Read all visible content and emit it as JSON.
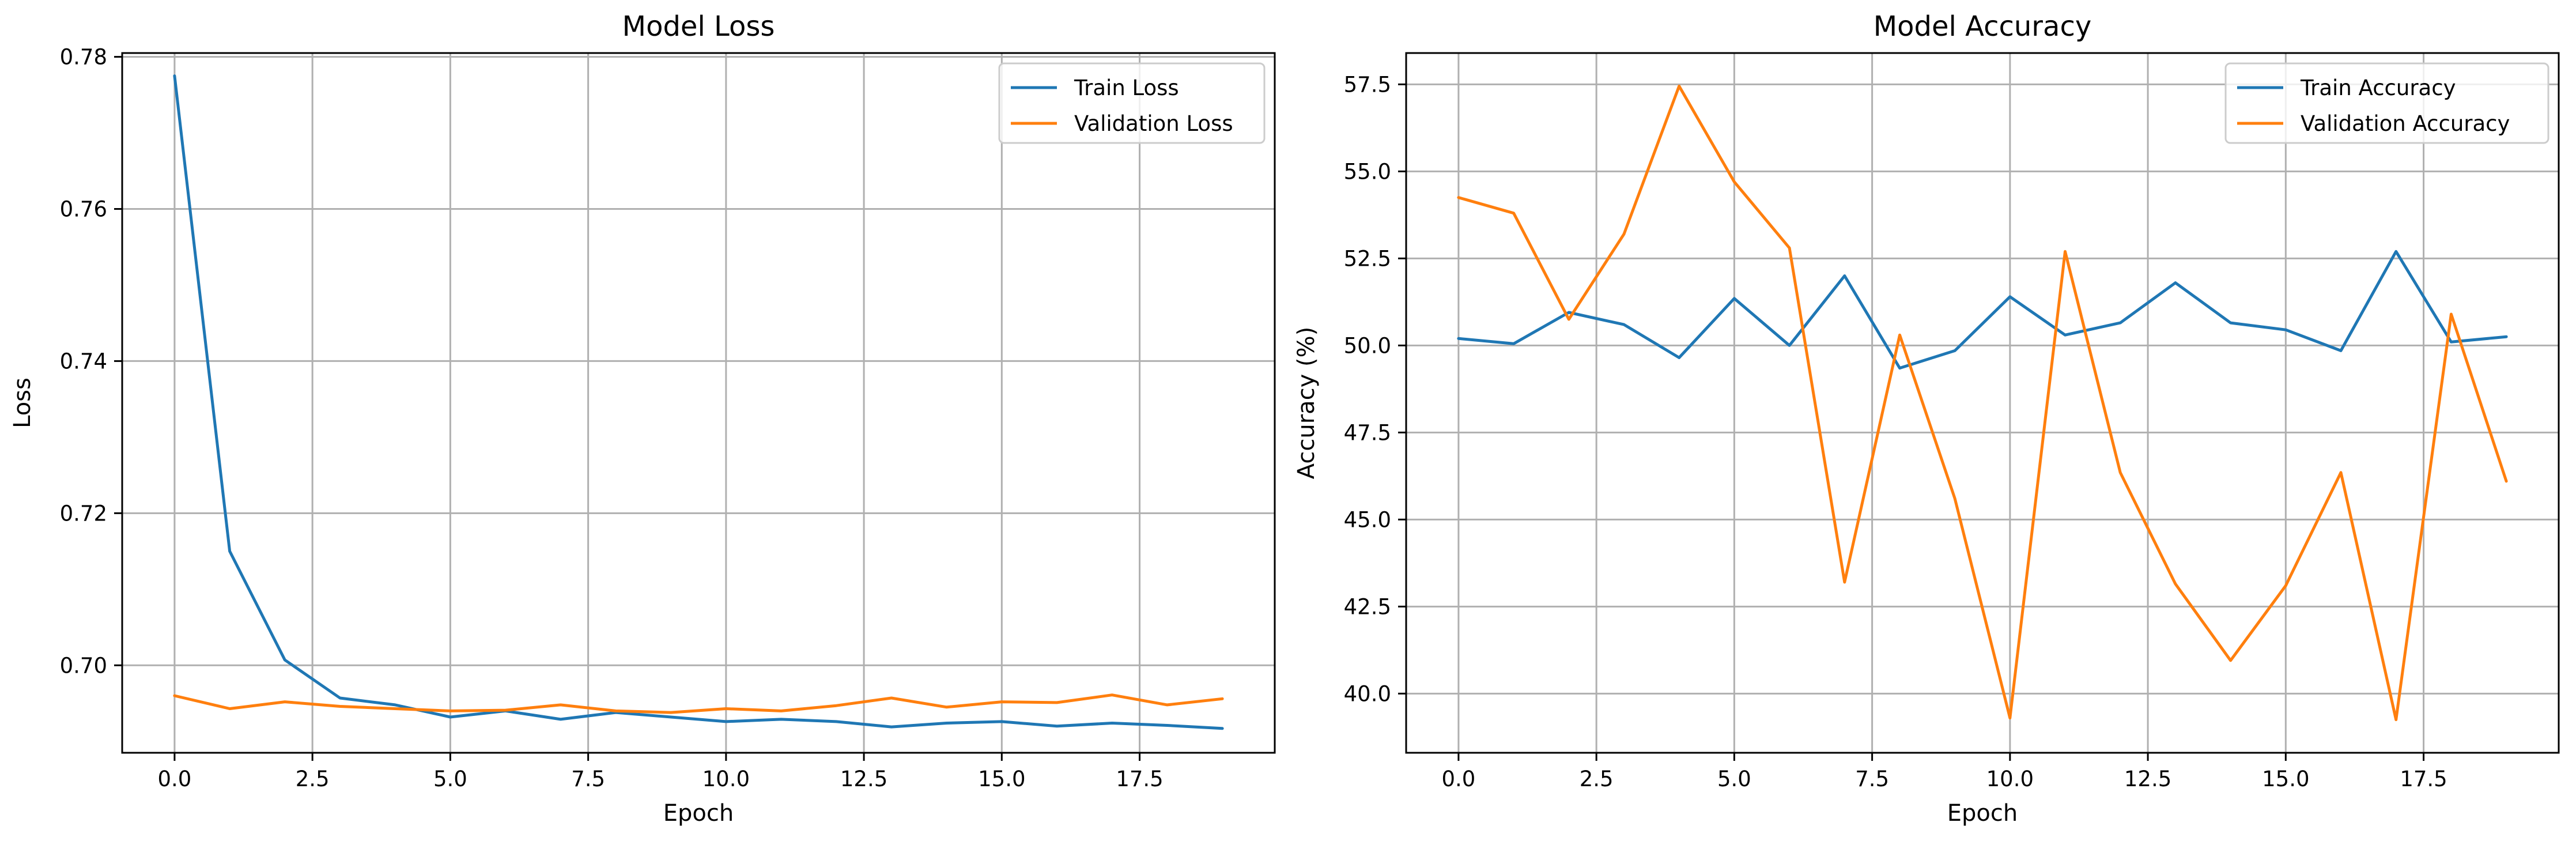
{
  "chart_data": [
    {
      "type": "line",
      "title": "Model Loss",
      "xlabel": "Epoch",
      "ylabel": "Loss",
      "x": [
        0,
        1,
        2,
        3,
        4,
        5,
        6,
        7,
        8,
        9,
        10,
        11,
        12,
        13,
        14,
        15,
        16,
        17,
        18,
        19
      ],
      "xlim": [
        -0.95,
        19.95
      ],
      "ylim": [
        0.6885,
        0.7805
      ],
      "xticks": [
        0,
        2.5,
        5,
        7.5,
        10,
        12.5,
        15,
        17.5
      ],
      "xtick_labels": [
        "0.0",
        "2.5",
        "5.0",
        "7.5",
        "10.0",
        "12.5",
        "15.0",
        "17.5"
      ],
      "yticks": [
        0.7,
        0.72,
        0.74,
        0.76,
        0.78
      ],
      "ytick_labels": [
        "0.70",
        "0.72",
        "0.74",
        "0.76",
        "0.78"
      ],
      "grid": true,
      "legend": "top-right",
      "series": [
        {
          "name": "Train Loss",
          "color": "#1f77b4",
          "values": [
            0.7775,
            0.715,
            0.7007,
            0.6957,
            0.6948,
            0.6932,
            0.694,
            0.6929,
            0.6938,
            0.6932,
            0.6926,
            0.6929,
            0.6926,
            0.6919,
            0.6924,
            0.6926,
            0.692,
            0.6924,
            0.6921,
            0.6917
          ]
        },
        {
          "name": "Validation Loss",
          "color": "#ff7f0e",
          "values": [
            0.696,
            0.6943,
            0.6952,
            0.6946,
            0.6943,
            0.694,
            0.6941,
            0.6948,
            0.694,
            0.6938,
            0.6943,
            0.694,
            0.6947,
            0.6957,
            0.6945,
            0.6952,
            0.6951,
            0.6961,
            0.6948,
            0.6956
          ]
        }
      ]
    },
    {
      "type": "line",
      "title": "Model Accuracy",
      "xlabel": "Epoch",
      "ylabel": "Accuracy (%)",
      "x": [
        0,
        1,
        2,
        3,
        4,
        5,
        6,
        7,
        8,
        9,
        10,
        11,
        12,
        13,
        14,
        15,
        16,
        17,
        18,
        19
      ],
      "xlim": [
        -0.95,
        19.95
      ],
      "ylim": [
        38.3,
        58.4
      ],
      "xticks": [
        0,
        2.5,
        5,
        7.5,
        10,
        12.5,
        15,
        17.5
      ],
      "xtick_labels": [
        "0.0",
        "2.5",
        "5.0",
        "7.5",
        "10.0",
        "12.5",
        "15.0",
        "17.5"
      ],
      "yticks": [
        40,
        42.5,
        45,
        47.5,
        50,
        52.5,
        55,
        57.5
      ],
      "ytick_labels": [
        "40.0",
        "42.5",
        "45.0",
        "47.5",
        "50.0",
        "52.5",
        "55.0",
        "57.5"
      ],
      "grid": true,
      "legend": "top-right",
      "series": [
        {
          "name": "Train Accuracy",
          "color": "#1f77b4",
          "values": [
            50.2,
            50.05,
            50.95,
            50.6,
            49.65,
            51.35,
            50.0,
            52.0,
            49.35,
            49.85,
            51.4,
            50.3,
            50.65,
            51.8,
            50.65,
            50.45,
            49.85,
            52.7,
            50.1,
            50.25
          ]
        },
        {
          "name": "Validation Accuracy",
          "color": "#ff7f0e",
          "values": [
            54.25,
            53.8,
            50.75,
            53.2,
            57.45,
            54.7,
            52.8,
            43.2,
            50.3,
            45.6,
            39.3,
            52.7,
            46.35,
            43.15,
            40.95,
            43.1,
            46.35,
            39.25,
            50.9,
            46.1
          ]
        }
      ]
    }
  ]
}
